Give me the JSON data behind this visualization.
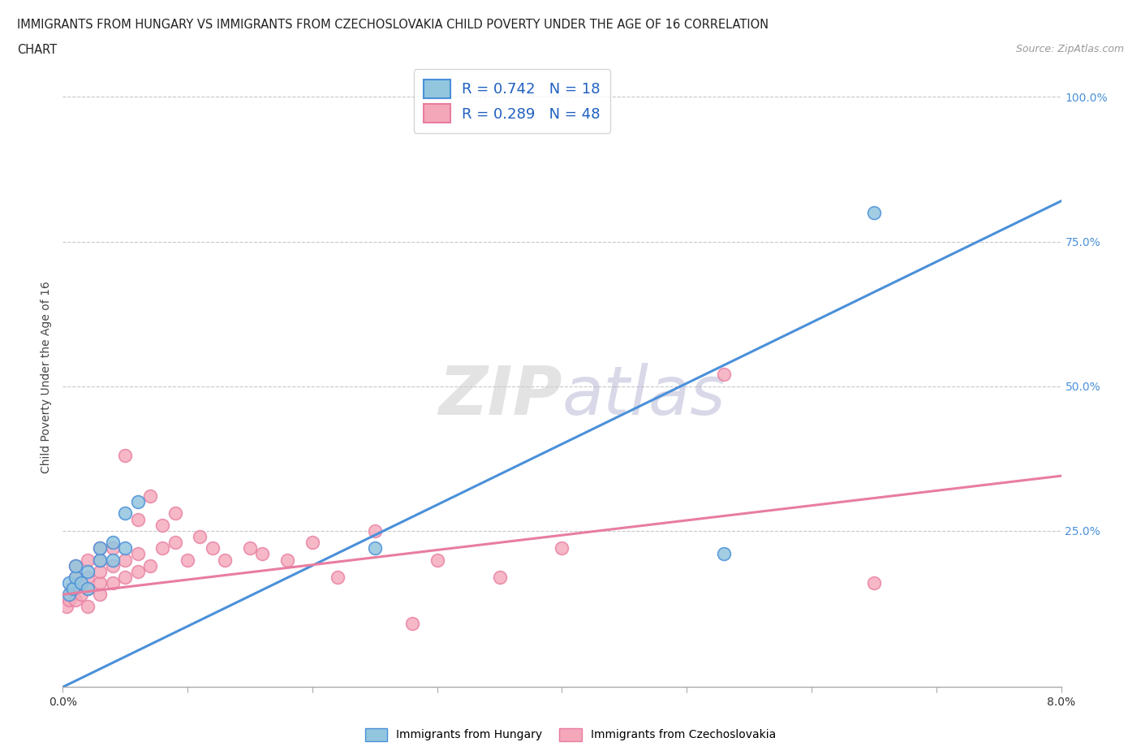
{
  "title_line1": "IMMIGRANTS FROM HUNGARY VS IMMIGRANTS FROM CZECHOSLOVAKIA CHILD POVERTY UNDER THE AGE OF 16 CORRELATION",
  "title_line2": "CHART",
  "source": "Source: ZipAtlas.com",
  "ylabel": "Child Poverty Under the Age of 16",
  "xlim": [
    0.0,
    0.08
  ],
  "ylim": [
    -0.02,
    1.05
  ],
  "xticks": [
    0.0,
    0.01,
    0.02,
    0.03,
    0.04,
    0.05,
    0.06,
    0.07,
    0.08
  ],
  "xticklabels": [
    "0.0%",
    "",
    "",
    "",
    "",
    "",
    "",
    "",
    "8.0%"
  ],
  "yticks": [
    0.0,
    0.25,
    0.5,
    0.75,
    1.0
  ],
  "yticklabels_right": [
    "",
    "25.0%",
    "50.0%",
    "75.0%",
    "100.0%"
  ],
  "hungary_R": 0.742,
  "hungary_N": 18,
  "czech_R": 0.289,
  "czech_N": 48,
  "hungary_color": "#92C5DE",
  "czech_color": "#F4A7B9",
  "hungary_line_color": "#4A90D9",
  "czech_line_color": "#E87DA0",
  "legend_text_color": "#2060C0",
  "grid_color": "#C8C8C8",
  "hungary_points_x": [
    0.0005,
    0.0005,
    0.0008,
    0.001,
    0.001,
    0.0015,
    0.002,
    0.002,
    0.003,
    0.003,
    0.004,
    0.004,
    0.005,
    0.005,
    0.006,
    0.025,
    0.053,
    0.065
  ],
  "hungary_points_y": [
    0.14,
    0.16,
    0.15,
    0.17,
    0.19,
    0.16,
    0.15,
    0.18,
    0.2,
    0.22,
    0.2,
    0.23,
    0.28,
    0.22,
    0.3,
    0.22,
    0.21,
    0.8
  ],
  "czech_points_x": [
    0.0003,
    0.0005,
    0.0007,
    0.001,
    0.001,
    0.001,
    0.001,
    0.0015,
    0.002,
    0.002,
    0.002,
    0.002,
    0.003,
    0.003,
    0.003,
    0.003,
    0.003,
    0.004,
    0.004,
    0.004,
    0.005,
    0.005,
    0.005,
    0.006,
    0.006,
    0.006,
    0.007,
    0.007,
    0.008,
    0.008,
    0.009,
    0.009,
    0.01,
    0.011,
    0.012,
    0.013,
    0.015,
    0.016,
    0.018,
    0.02,
    0.022,
    0.025,
    0.028,
    0.03,
    0.035,
    0.04,
    0.053,
    0.065
  ],
  "czech_points_y": [
    0.12,
    0.13,
    0.15,
    0.13,
    0.155,
    0.17,
    0.19,
    0.14,
    0.12,
    0.15,
    0.17,
    0.2,
    0.14,
    0.16,
    0.18,
    0.2,
    0.22,
    0.16,
    0.19,
    0.22,
    0.17,
    0.2,
    0.38,
    0.18,
    0.21,
    0.27,
    0.19,
    0.31,
    0.22,
    0.26,
    0.23,
    0.28,
    0.2,
    0.24,
    0.22,
    0.2,
    0.22,
    0.21,
    0.2,
    0.23,
    0.17,
    0.25,
    0.09,
    0.2,
    0.17,
    0.22,
    0.52,
    0.16
  ],
  "hungary_line_x": [
    0.0,
    0.08
  ],
  "hungary_line_y": [
    -0.02,
    0.82
  ],
  "czech_line_x": [
    0.0,
    0.08
  ],
  "czech_line_y": [
    0.14,
    0.345
  ]
}
